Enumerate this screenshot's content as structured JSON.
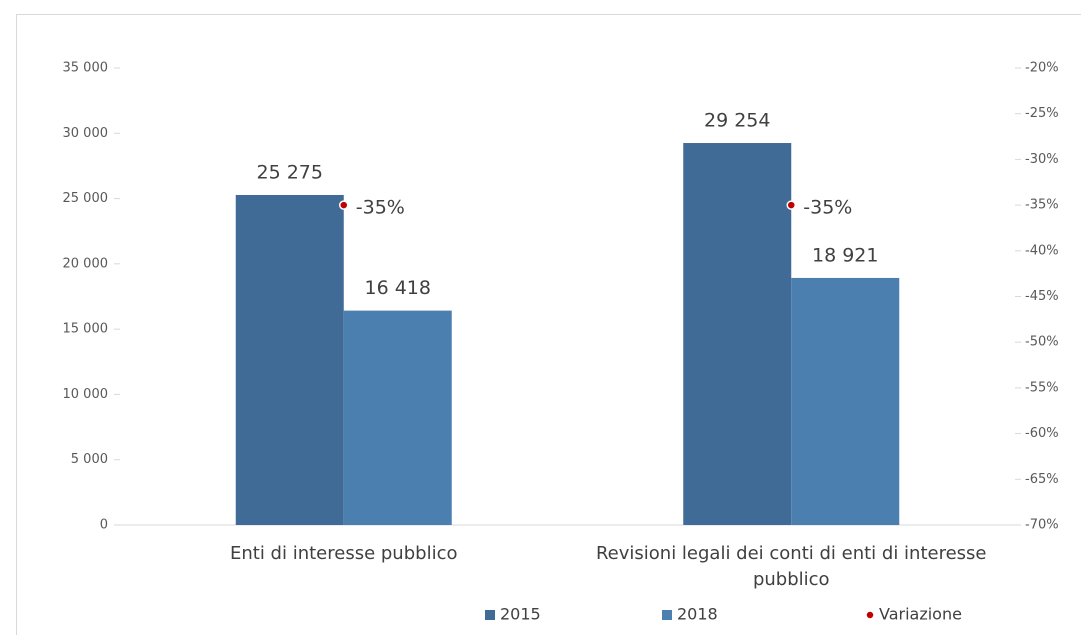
{
  "chart_data": {
    "type": "bar",
    "categories": [
      "Enti di interesse pubblico",
      "Revisioni legali dei conti di enti di interesse pubblico"
    ],
    "series": [
      {
        "name": "2015",
        "color": "#3f6b96",
        "values": [
          25275,
          29254
        ],
        "value_labels": [
          "25 275",
          "29 254"
        ]
      },
      {
        "name": "2018",
        "color": "#4a7fb0",
        "values": [
          16418,
          18921
        ],
        "value_labels": [
          "16 418",
          "18 921"
        ]
      },
      {
        "name": "Variazione",
        "color": "#c00000",
        "axis": "y2",
        "type": "scatter",
        "values": [
          -35,
          -35
        ],
        "value_labels": [
          "-35%",
          "-35%"
        ]
      }
    ],
    "ylim": [
      0,
      35000
    ],
    "yticks": [
      0,
      {
        "value": 5000,
        "label": "5 000"
      },
      {
        "value": 10000,
        "label": "10 000"
      },
      {
        "value": 15000,
        "label": "15 000"
      },
      {
        "value": 20000,
        "label": "20 000"
      },
      {
        "value": 25000,
        "label": "25 000"
      },
      {
        "value": 30000,
        "label": "30 000"
      },
      {
        "value": 35000,
        "label": "35 000"
      }
    ],
    "y2lim": [
      -70,
      -20
    ],
    "y2ticks": [
      {
        "value": -70,
        "label": "-70%"
      },
      {
        "value": -65,
        "label": "-65%"
      },
      {
        "value": -60,
        "label": "-60%"
      },
      {
        "value": -55,
        "label": "-55%"
      },
      {
        "value": -50,
        "label": "-50%"
      },
      {
        "value": -45,
        "label": "-45%"
      },
      {
        "value": -40,
        "label": "-40%"
      },
      {
        "value": -35,
        "label": "-35%"
      },
      {
        "value": -30,
        "label": "-30%"
      },
      {
        "value": -25,
        "label": "-25%"
      },
      {
        "value": -20,
        "label": "-20%"
      }
    ],
    "legend": "bottom",
    "grid": false
  }
}
